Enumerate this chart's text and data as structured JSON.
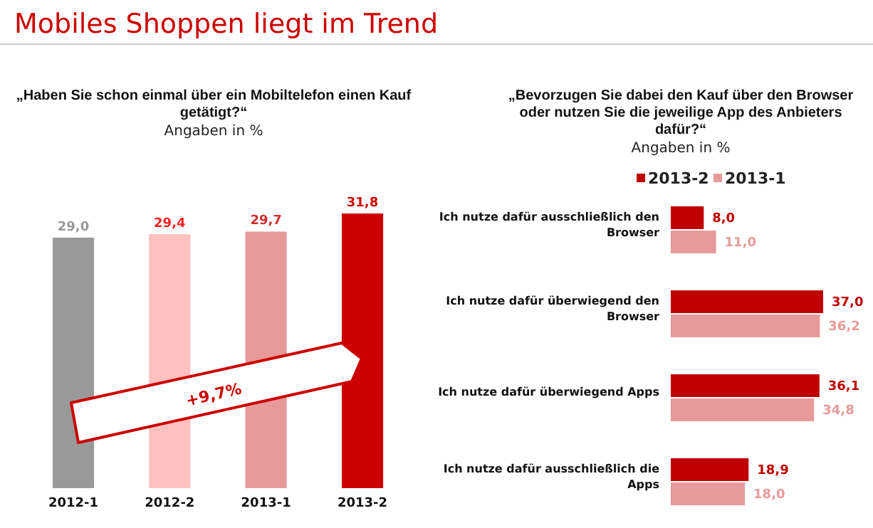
{
  "chart_data": [
    {
      "type": "other",
      "title": "Mobiles Shoppen liegt im Trend"
    },
    {
      "type": "bar",
      "title": "„Haben Sie schon einmal über ein Mobiltelefon einen Kauf getätigt?“",
      "subtitle": "Angaben in %",
      "categories": [
        "2012-1",
        "2012-2",
        "2013-1",
        "2013-2"
      ],
      "values": [
        29.0,
        29.4,
        29.7,
        31.8
      ],
      "colors": [
        "#999999",
        "#ffc0c0",
        "#e89a9a",
        "#cc0000"
      ],
      "value_labels": [
        "29,0",
        "29,4",
        "29,7",
        "31,8"
      ],
      "annotations": [
        "+9,7%"
      ]
    },
    {
      "type": "bar",
      "orientation": "horizontal",
      "title": "„Bevorzugen Sie dabei den Kauf über den Browser oder nutzen Sie die jeweilige App des Anbieters dafür?“",
      "subtitle": "Angaben in %",
      "legend": "top",
      "categories": [
        "Ich nutze dafür ausschließlich den Browser",
        "Ich nutze dafür überwiegend den Browser",
        "Ich nutze dafür überwiegend Apps",
        "Ich nutze dafür ausschließlich die Apps"
      ],
      "series": [
        {
          "name": "2013-2",
          "color": "#c00000",
          "values": [
            8.0,
            37.0,
            36.1,
            18.9
          ],
          "value_labels": [
            "8,0",
            "37,0",
            "36,1",
            "18,9"
          ]
        },
        {
          "name": "2013-1",
          "color": "#e89a9b",
          "values": [
            11.0,
            36.2,
            34.8,
            18.0
          ],
          "value_labels": [
            "11,0",
            "36,2",
            "34,8",
            "18,0"
          ]
        }
      ]
    }
  ]
}
